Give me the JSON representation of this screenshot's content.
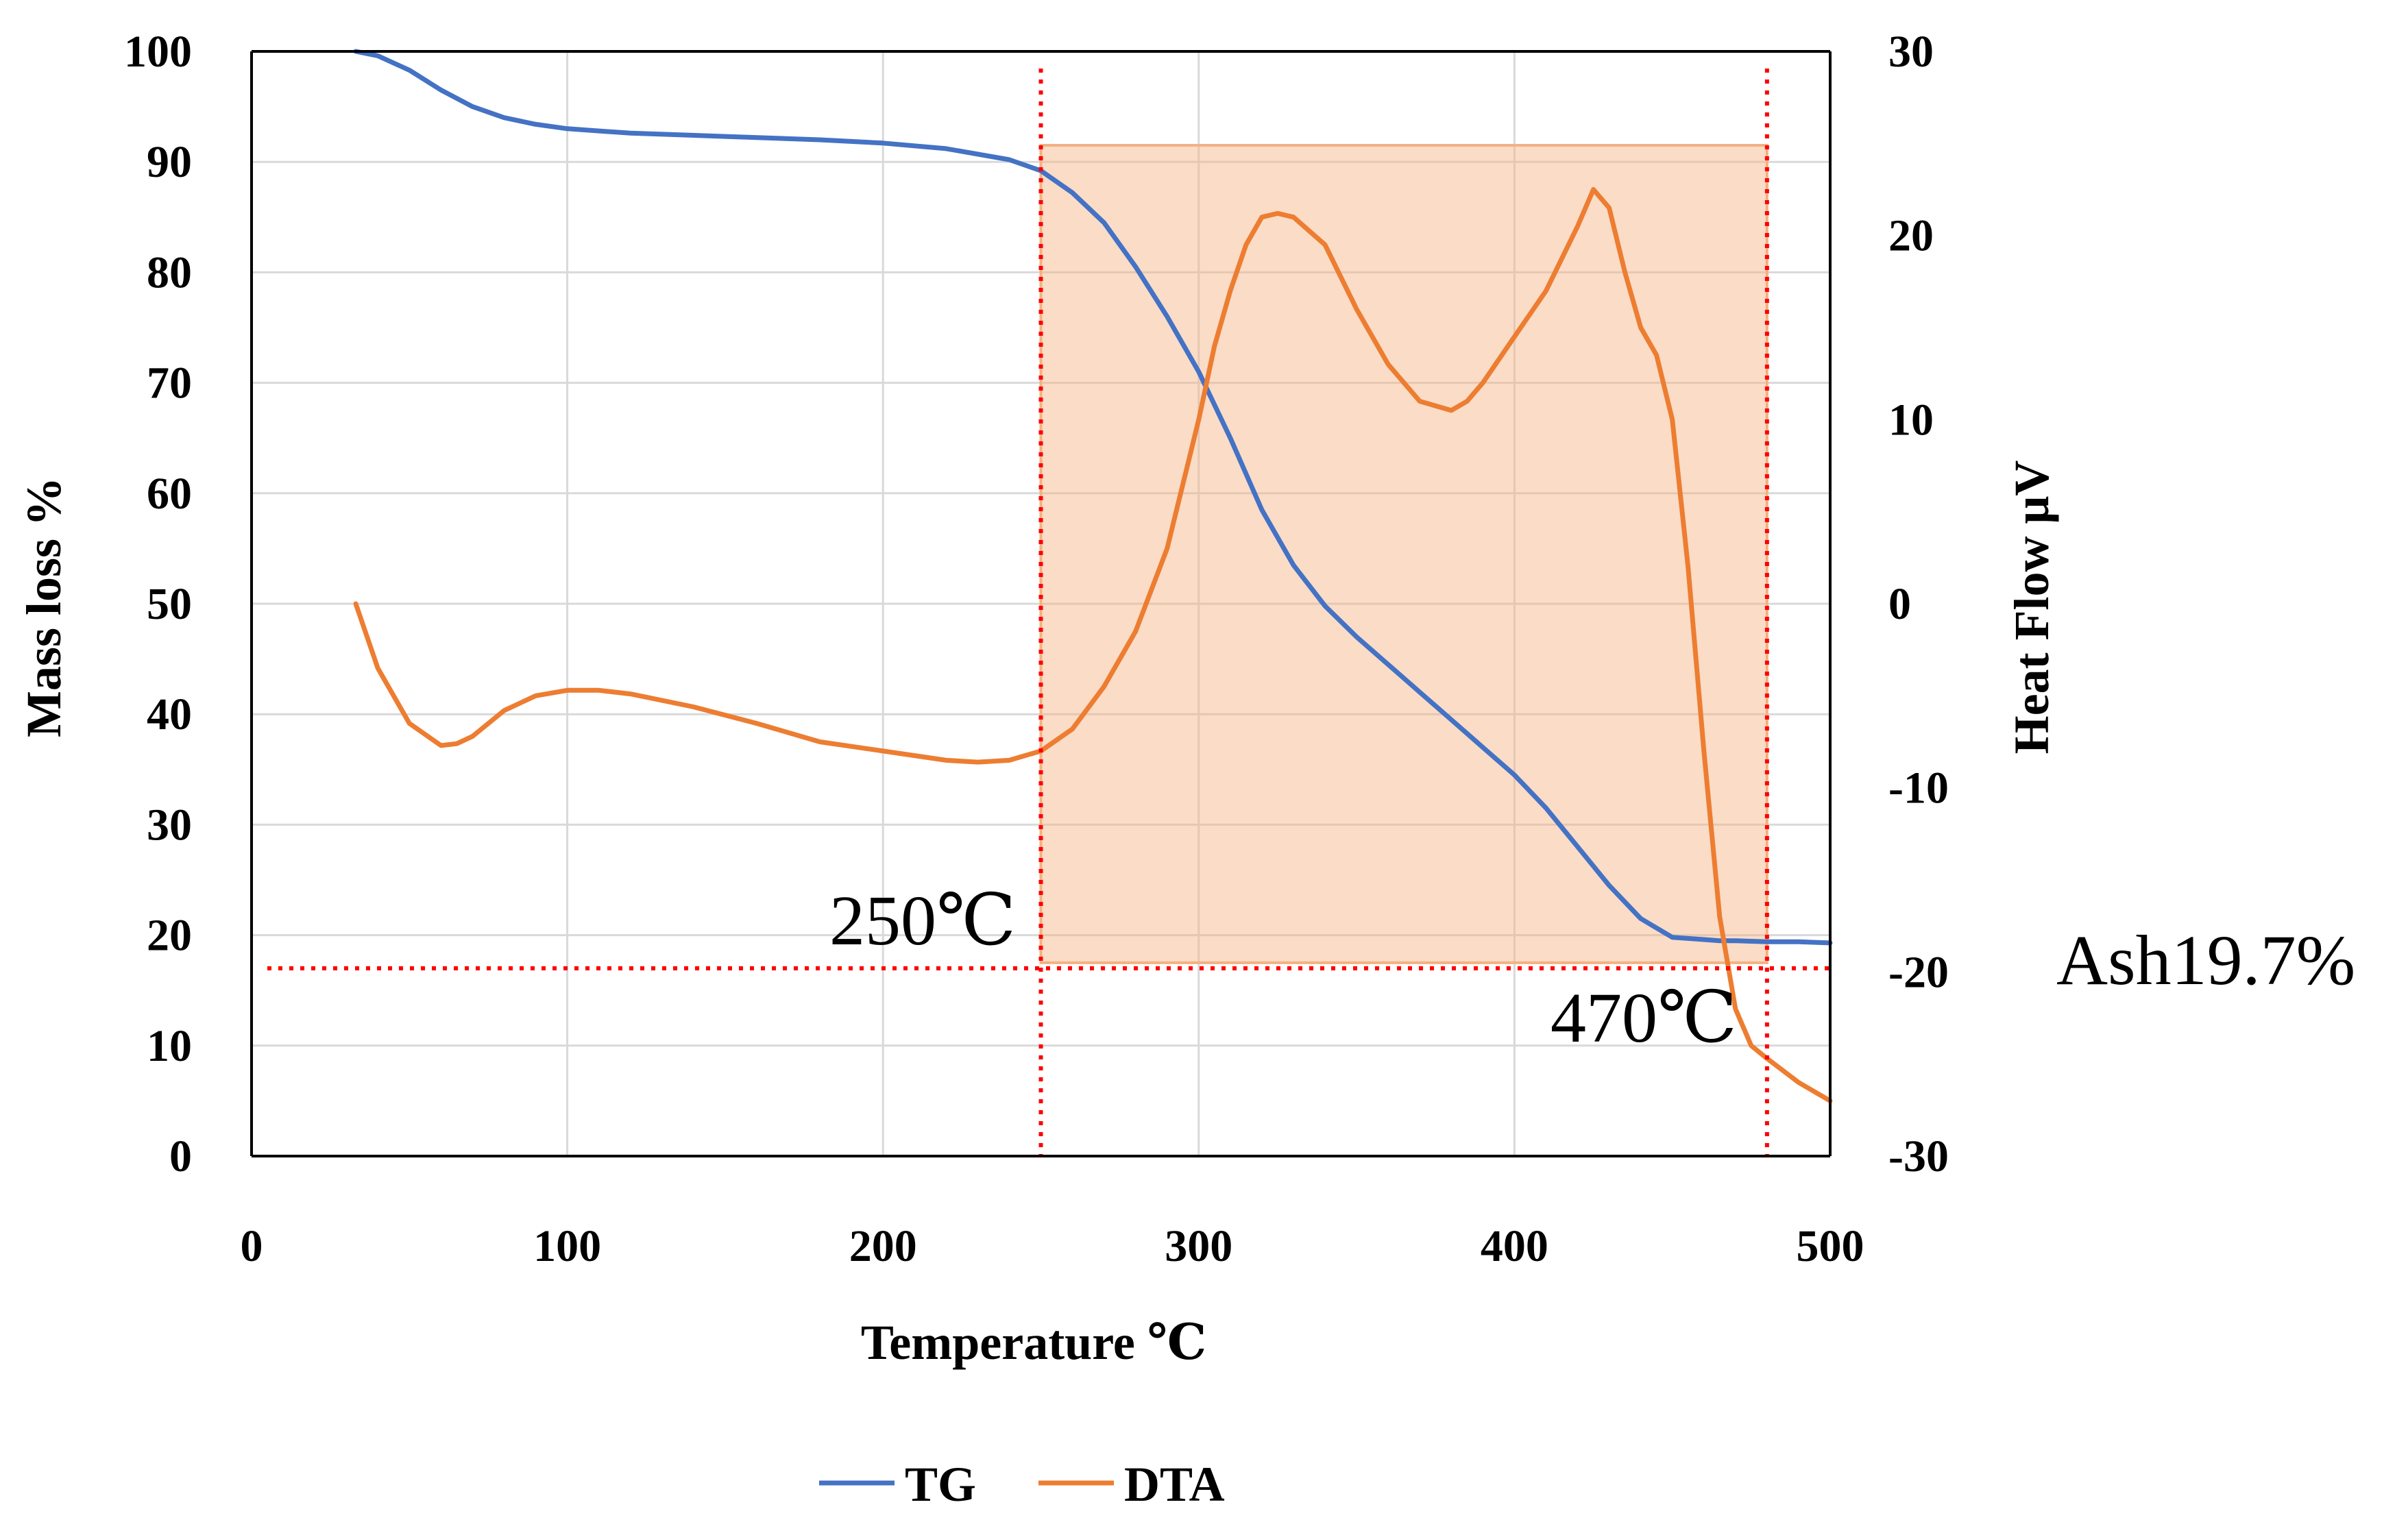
{
  "chart_data": {
    "type": "line",
    "title": "",
    "xlabel": "Temperature ℃",
    "ylabel": "Mass loss %",
    "y2label": "Heat Flow μV",
    "xlim": [
      0,
      500
    ],
    "ylim": [
      0,
      100
    ],
    "y2lim": [
      -30,
      30
    ],
    "xticks": [
      0,
      100,
      200,
      300,
      400,
      500
    ],
    "yticks": [
      0,
      10,
      20,
      30,
      40,
      50,
      60,
      70,
      80,
      90,
      100
    ],
    "y2ticks": [
      -30,
      -20,
      -10,
      0,
      10,
      20,
      30
    ],
    "grid": true,
    "legend_position": "bottom-center",
    "series": [
      {
        "name": "TG",
        "axis": "left",
        "color": "#4472C4",
        "x": [
          33,
          40,
          50,
          60,
          70,
          80,
          90,
          100,
          120,
          150,
          180,
          200,
          220,
          240,
          250,
          260,
          270,
          280,
          290,
          300,
          310,
          320,
          330,
          340,
          350,
          360,
          370,
          380,
          390,
          400,
          410,
          420,
          430,
          440,
          450,
          460,
          465,
          470,
          480,
          490,
          500
        ],
        "y": [
          100,
          99.6,
          98.3,
          96.5,
          95,
          94,
          93.4,
          93,
          92.6,
          92.3,
          92,
          91.7,
          91.2,
          90.2,
          89.2,
          87.2,
          84.5,
          80.5,
          76,
          71,
          65,
          58.5,
          53.5,
          49.8,
          47,
          44.5,
          42,
          39.5,
          37,
          34.5,
          31.5,
          28,
          24.5,
          21.5,
          19.8,
          19.6,
          19.5,
          19.5,
          19.4,
          19.4,
          19.3
        ]
      },
      {
        "name": "DTA",
        "axis": "right",
        "color": "#ED7D31",
        "x": [
          33,
          40,
          50,
          60,
          65,
          70,
          80,
          90,
          100,
          110,
          120,
          140,
          160,
          180,
          200,
          220,
          230,
          240,
          250,
          260,
          270,
          280,
          290,
          300,
          305,
          310,
          315,
          320,
          325,
          330,
          340,
          350,
          360,
          370,
          380,
          385,
          390,
          400,
          410,
          420,
          425,
          430,
          435,
          440,
          445,
          450,
          455,
          460,
          465,
          470,
          475,
          480,
          490,
          500
        ],
        "y": [
          0,
          -3.5,
          -6.5,
          -7.7,
          -7.6,
          -7.2,
          -5.8,
          -5,
          -4.7,
          -4.7,
          -4.9,
          -5.6,
          -6.5,
          -7.5,
          -8,
          -8.5,
          -8.6,
          -8.5,
          -8,
          -6.8,
          -4.5,
          -1.5,
          3,
          10,
          14,
          17,
          19.5,
          21,
          21.2,
          21,
          19.5,
          16,
          13,
          11,
          10.5,
          11,
          12,
          14.5,
          17,
          20.5,
          22.5,
          21.5,
          18,
          15,
          13.5,
          10,
          2,
          -8,
          -17,
          -22,
          -24,
          -24.7,
          -26,
          -27
        ]
      }
    ],
    "annotations": {
      "label_250": "250℃",
      "label_470": "470℃",
      "ash": "Ash19.7%",
      "shaded_region_x": [
        250,
        480
      ],
      "shaded_region_y": [
        17.5,
        91.5
      ],
      "vline_1_x": 250,
      "vline_2_x": 480,
      "hline_y": 17
    }
  }
}
